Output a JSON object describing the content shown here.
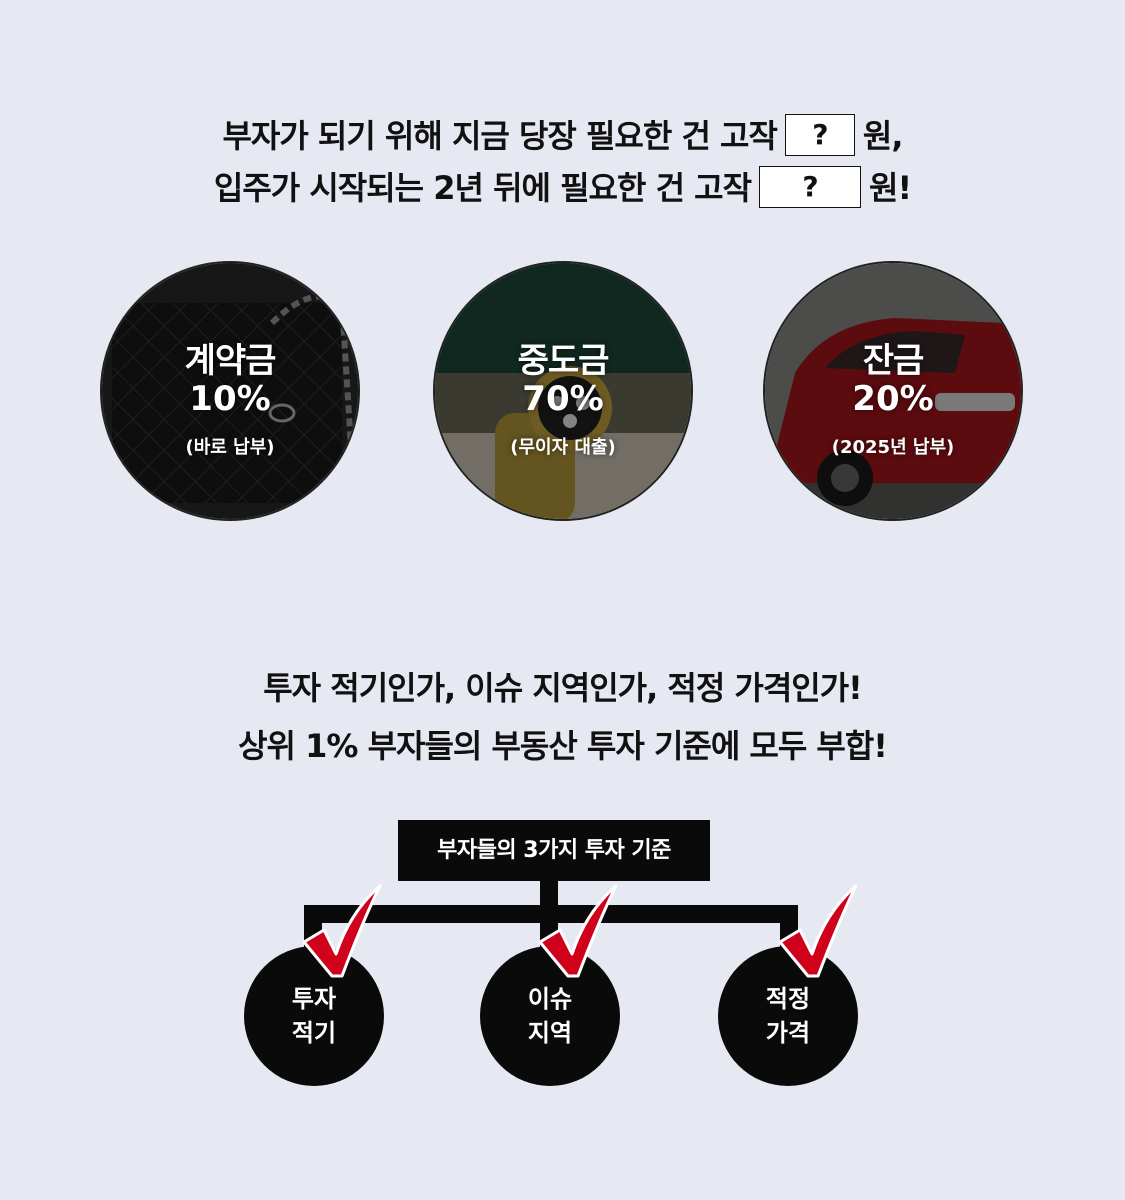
{
  "headline1": {
    "line1_a": "부자가 되기 위해 지금 당장 필요한 건 고작",
    "line1_q": "?",
    "line1_b": "원,",
    "line2_a": "입주가 시작되는 2년 뒤에 필요한 건 고작",
    "line2_q": "?",
    "line2_b": "원!"
  },
  "payments": [
    {
      "title": "계약금",
      "percent": "10%",
      "note": "(바로 납부)",
      "image": "quilted-handbag"
    },
    {
      "title": "중도금",
      "percent": "70%",
      "note": "(무이자 대출)",
      "image": "gold-watch"
    },
    {
      "title": "잔금",
      "percent": "20%",
      "note": "(2025년 납부)",
      "image": "red-car"
    }
  ],
  "headline2": {
    "line1": "투자 적기인가, 이슈 지역인가, 적정 가격인가!",
    "line2": "상위 1% 부자들의 부동산 투자 기준에 모두 부합!"
  },
  "criteria": {
    "title": "부자들의 3가지 투자 기준",
    "items": [
      {
        "line1": "투자",
        "line2": "적기"
      },
      {
        "line1": "이슈",
        "line2": "지역"
      },
      {
        "line1": "적정",
        "line2": "가격"
      }
    ],
    "check_color": "#d0021b"
  },
  "colors": {
    "background": "#e6e8f2",
    "ink": "#0a0a0a"
  }
}
